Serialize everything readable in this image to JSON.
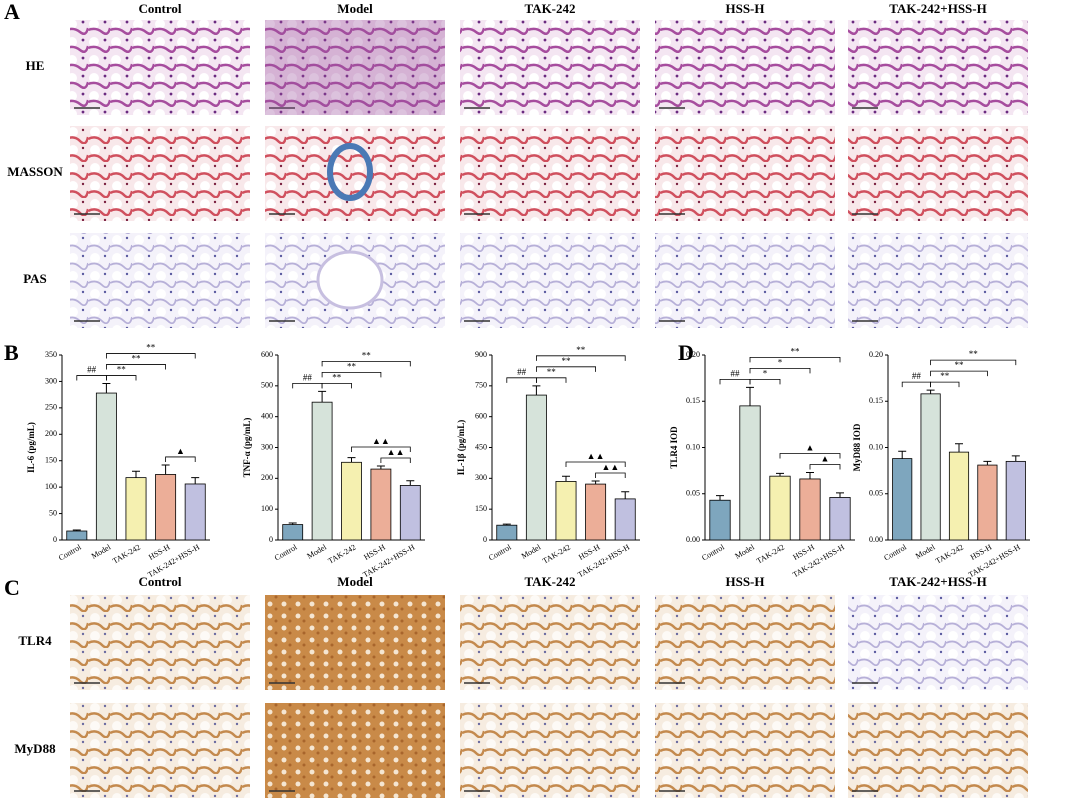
{
  "panels": {
    "A": {
      "letter": "A",
      "columns": [
        "Control",
        "Model",
        "TAK-242",
        "HSS-H",
        "TAK-242+HSS-H"
      ],
      "rows": [
        "HE",
        "MASSON",
        "PAS"
      ]
    },
    "B": {
      "letter": "B"
    },
    "C": {
      "letter": "C",
      "columns": [
        "Control",
        "Model",
        "TAK-242",
        "HSS-H",
        "TAK-242+HSS-H"
      ],
      "rows": [
        "TLR4",
        "MyD88"
      ]
    },
    "D": {
      "letter": "D"
    }
  },
  "chart_data": [
    {
      "type": "bar",
      "ylabel": "IL-6 (pg/mL)",
      "categories": [
        "Control",
        "Model",
        "TAK-242",
        "HSS-H",
        "TAK-242+HSS-H"
      ],
      "values": [
        17,
        278,
        118,
        124,
        106
      ],
      "errors": [
        2,
        18,
        12,
        18,
        12
      ],
      "colors": [
        "#7ea6be",
        "#d6e3da",
        "#f5f0b0",
        "#ecae98",
        "#c0c0e0"
      ],
      "ylim": [
        0,
        350
      ],
      "yticks": [
        0,
        50,
        100,
        150,
        200,
        250,
        300,
        350
      ],
      "brackets": [
        {
          "text": "##",
          "groups": [
            "Control",
            "Model"
          ]
        },
        {
          "text": "▲",
          "groups": [
            "HSS-H",
            "TAK-242+HSS-H"
          ]
        },
        {
          "text": "**",
          "groups": [
            "Model",
            "TAK-242"
          ]
        },
        {
          "text": "**",
          "groups": [
            "Model",
            "HSS-H"
          ]
        },
        {
          "text": "**",
          "groups": [
            "Model",
            "TAK-242+HSS-H"
          ]
        }
      ]
    },
    {
      "type": "bar",
      "ylabel": "TNF-α (pg/mL)",
      "categories": [
        "Control",
        "Model",
        "TAK-242",
        "HSS-H",
        "TAK-242+HSS-H"
      ],
      "values": [
        50,
        447,
        252,
        230,
        177
      ],
      "errors": [
        5,
        35,
        15,
        10,
        15
      ],
      "colors": [
        "#7ea6be",
        "#d6e3da",
        "#f5f0b0",
        "#ecae98",
        "#c0c0e0"
      ],
      "ylim": [
        0,
        600
      ],
      "yticks": [
        0,
        100,
        200,
        300,
        400,
        500,
        600
      ],
      "brackets": [
        {
          "text": "##",
          "groups": [
            "Control",
            "Model"
          ]
        },
        {
          "text": "▲▲",
          "groups": [
            "HSS-H",
            "TAK-242+HSS-H"
          ]
        },
        {
          "text": "▲▲",
          "groups": [
            "TAK-242",
            "TAK-242+HSS-H"
          ]
        },
        {
          "text": "**",
          "groups": [
            "Model",
            "TAK-242"
          ]
        },
        {
          "text": "**",
          "groups": [
            "Model",
            "HSS-H"
          ]
        },
        {
          "text": "**",
          "groups": [
            "Model",
            "TAK-242+HSS-H"
          ]
        }
      ]
    },
    {
      "type": "bar",
      "ylabel": "IL-1β (pg/mL)",
      "categories": [
        "Control",
        "Model",
        "TAK-242",
        "HSS-H",
        "TAK-242+HSS-H"
      ],
      "values": [
        72,
        705,
        285,
        272,
        200
      ],
      "errors": [
        5,
        45,
        25,
        15,
        35
      ],
      "colors": [
        "#7ea6be",
        "#d6e3da",
        "#f5f0b0",
        "#ecae98",
        "#c0c0e0"
      ],
      "ylim": [
        0,
        900
      ],
      "yticks": [
        0,
        150,
        300,
        450,
        600,
        750,
        900
      ],
      "brackets": [
        {
          "text": "##",
          "groups": [
            "Control",
            "Model"
          ]
        },
        {
          "text": "▲▲",
          "groups": [
            "HSS-H",
            "TAK-242+HSS-H"
          ]
        },
        {
          "text": "▲▲",
          "groups": [
            "TAK-242",
            "TAK-242+HSS-H"
          ]
        },
        {
          "text": "**",
          "groups": [
            "Model",
            "TAK-242"
          ]
        },
        {
          "text": "**",
          "groups": [
            "Model",
            "HSS-H"
          ]
        },
        {
          "text": "**",
          "groups": [
            "Model",
            "TAK-242+HSS-H"
          ]
        }
      ]
    },
    {
      "type": "bar",
      "ylabel": "TLR4 IOD",
      "categories": [
        "Control",
        "Model",
        "TAK-242",
        "HSS-H",
        "TAK-242+HSS-H"
      ],
      "values": [
        0.043,
        0.145,
        0.069,
        0.066,
        0.046
      ],
      "errors": [
        0.005,
        0.02,
        0.003,
        0.007,
        0.005
      ],
      "colors": [
        "#7ea6be",
        "#d6e3da",
        "#f5f0b0",
        "#ecae98",
        "#c0c0e0"
      ],
      "ylim": [
        0,
        0.2
      ],
      "yticks": [
        {
          "value": 0,
          "label": "0.00"
        },
        {
          "value": 0.05,
          "label": "0.05"
        },
        {
          "value": 0.1,
          "label": "0.10"
        },
        {
          "value": 0.15,
          "label": "0.15"
        },
        {
          "value": 0.2,
          "label": "0.20"
        }
      ],
      "brackets": [
        {
          "text": "##",
          "groups": [
            "Control",
            "Model"
          ]
        },
        {
          "text": "▲",
          "groups": [
            "HSS-H",
            "TAK-242+HSS-H"
          ]
        },
        {
          "text": "▲",
          "groups": [
            "TAK-242",
            "TAK-242+HSS-H"
          ]
        },
        {
          "text": "*",
          "groups": [
            "Model",
            "TAK-242"
          ]
        },
        {
          "text": "*",
          "groups": [
            "Model",
            "HSS-H"
          ]
        },
        {
          "text": "**",
          "groups": [
            "Model",
            "TAK-242+HSS-H"
          ]
        }
      ]
    },
    {
      "type": "bar",
      "ylabel": "MyD88 IOD",
      "categories": [
        "Control",
        "Model",
        "TAK-242",
        "HSS-H",
        "TAK-242+HSS-H"
      ],
      "values": [
        0.088,
        0.158,
        0.095,
        0.081,
        0.085
      ],
      "errors": [
        0.008,
        0.004,
        0.009,
        0.004,
        0.006
      ],
      "colors": [
        "#7ea6be",
        "#d6e3da",
        "#f5f0b0",
        "#ecae98",
        "#c0c0e0"
      ],
      "ylim": [
        0,
        0.2
      ],
      "yticks": [
        {
          "value": 0,
          "label": "0.00"
        },
        {
          "value": 0.05,
          "label": "0.05"
        },
        {
          "value": 0.1,
          "label": "0.10"
        },
        {
          "value": 0.15,
          "label": "0.15"
        },
        {
          "value": 0.2,
          "label": "0.20"
        }
      ],
      "brackets": [
        {
          "text": "##",
          "groups": [
            "Control",
            "Model"
          ]
        },
        {
          "text": "**",
          "groups": [
            "Model",
            "TAK-242"
          ]
        },
        {
          "text": "**",
          "groups": [
            "Model",
            "HSS-H"
          ]
        },
        {
          "text": "**",
          "groups": [
            "Model",
            "TAK-242+HSS-H"
          ]
        }
      ]
    }
  ]
}
